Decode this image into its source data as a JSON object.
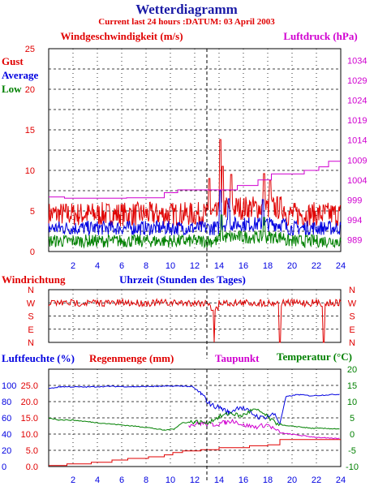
{
  "colors": {
    "title": "#1a1aa6",
    "red": "#e00000",
    "blue": "#0000e0",
    "green": "#008000",
    "magenta": "#d000d0",
    "grid": "#000000"
  },
  "header": {
    "title": "Wetterdiagramm",
    "subtitle": "Current last 24 hours :DATUM: 03 April 2003"
  },
  "chart_data": [
    {
      "type": "line",
      "title": "Windgeschwindigkeit (m/s)",
      "right_title": "Luftdruck (hPa)",
      "legend": [
        "Gust",
        "Average",
        "Low"
      ],
      "x": {
        "label": "Uhrzeit (Stunden des Tages)",
        "min": 0,
        "max": 24,
        "ticks": [
          "2",
          "4",
          "6",
          "8",
          "10",
          "12",
          "14",
          "16",
          "18",
          "20",
          "22",
          "24"
        ]
      },
      "y_left": {
        "min": 0,
        "max": 25,
        "ticks": [
          "0",
          "5",
          "10",
          "15",
          "20",
          "25"
        ]
      },
      "y_right": {
        "min": 986,
        "max": 1037,
        "ticks": [
          "989",
          "994",
          "999",
          "1004",
          "1009",
          "1014",
          "1019",
          "1024",
          "1029",
          "1034"
        ]
      },
      "series": [
        {
          "name": "Gust",
          "color": "red",
          "base": 4.6,
          "spikes": [
            [
              13.2,
              9.0
            ],
            [
              14.1,
              13.8
            ],
            [
              14.3,
              10.5
            ],
            [
              15.0,
              9.5
            ],
            [
              17.7,
              9.6
            ],
            [
              18.2,
              8.8
            ]
          ]
        },
        {
          "name": "Average",
          "color": "blue",
          "base": 2.9,
          "spikes": [
            [
              14.1,
              7.5
            ],
            [
              14.8,
              6.5
            ],
            [
              17.6,
              6.4
            ]
          ]
        },
        {
          "name": "Low",
          "color": "green",
          "base": 1.3,
          "spikes": [
            [
              14.2,
              4.5
            ],
            [
              17.7,
              4.2
            ]
          ]
        },
        {
          "name": "Luftdruck",
          "color": "magenta",
          "steps": [
            [
              0,
              999.7
            ],
            [
              1.3,
              999.4
            ],
            [
              6.4,
              999.5
            ],
            [
              9.5,
              1000.8
            ],
            [
              10.6,
              1001.5
            ],
            [
              15.5,
              1002.6
            ],
            [
              17.2,
              1004.0
            ],
            [
              18.3,
              1005.5
            ],
            [
              21.0,
              1006.4
            ],
            [
              22.2,
              1007.3
            ],
            [
              23.0,
              1008.7
            ],
            [
              24,
              1008.7
            ]
          ]
        }
      ]
    },
    {
      "type": "line",
      "title": "Windrichtung",
      "y_ticks": [
        "N",
        "W",
        "S",
        "E",
        "N"
      ],
      "series": [
        {
          "name": "Windrichtung",
          "color": "red",
          "base": "W",
          "drops": [
            [
              13.6,
              "N"
            ],
            [
              19.0,
              "N"
            ],
            [
              22.6,
              "N"
            ]
          ]
        }
      ]
    },
    {
      "type": "line",
      "titles": [
        "Luftfeuchte (%)",
        "Regenmenge (mm)",
        "Taupunkt",
        "Temperatur (°C)"
      ],
      "y_left_humidity": {
        "min": 0,
        "max": 120,
        "ticks": [
          "0",
          "20",
          "40",
          "60",
          "80",
          "100"
        ]
      },
      "y_left_rain": {
        "min": 0,
        "max": 30,
        "ticks": [
          "0.0",
          "5.0",
          "10.0",
          "15.0",
          "20.0",
          "25.0"
        ]
      },
      "y_right": {
        "min": -10,
        "max": 20,
        "ticks": [
          "-10",
          "-5",
          "0",
          "5",
          "10",
          "15",
          "20"
        ]
      },
      "x_ticks": [
        "2",
        "4",
        "6",
        "8",
        "10",
        "12",
        "14",
        "16",
        "18",
        "20",
        "22",
        "24"
      ],
      "series": [
        {
          "name": "Luftfeuchte",
          "color": "blue",
          "points": [
            [
              0,
              24.0
            ],
            [
              1,
              24.6
            ],
            [
              3,
              24.5
            ],
            [
              5,
              24.7
            ],
            [
              7,
              24.6
            ],
            [
              9,
              24.7
            ],
            [
              11,
              24.8
            ],
            [
              11.8,
              24.6
            ],
            [
              12.5,
              22.5
            ],
            [
              13.3,
              19.0
            ],
            [
              14.2,
              18.0
            ],
            [
              14.8,
              16.5
            ],
            [
              15.7,
              18.5
            ],
            [
              16.5,
              16.8
            ],
            [
              17.4,
              15.0
            ],
            [
              18.0,
              15.5
            ],
            [
              18.6,
              16.2
            ],
            [
              19.0,
              13.2
            ],
            [
              19.5,
              21.5
            ],
            [
              20.5,
              22.2
            ],
            [
              21.5,
              21.8
            ],
            [
              22.5,
              22.0
            ],
            [
              24,
              22.3
            ]
          ]
        },
        {
          "name": "Regenmenge",
          "color": "red",
          "steps": [
            [
              0,
              0.3
            ],
            [
              1.5,
              0.8
            ],
            [
              3.5,
              1.3
            ],
            [
              5.2,
              2.0
            ],
            [
              6.5,
              2.5
            ],
            [
              8.2,
              3.0
            ],
            [
              9.5,
              3.6
            ],
            [
              10.2,
              4.3
            ],
            [
              11.0,
              4.8
            ],
            [
              12.5,
              5.2
            ],
            [
              13.2,
              5.2
            ],
            [
              14.0,
              5.8
            ],
            [
              16.5,
              6.4
            ],
            [
              18.0,
              6.7
            ],
            [
              19.0,
              8.3
            ],
            [
              23.0,
              8.3
            ],
            [
              24,
              8.3
            ]
          ]
        },
        {
          "name": "Taupunkt",
          "color": "magenta",
          "points": [
            [
              11.5,
              2.7
            ],
            [
              12.5,
              3.3
            ],
            [
              13.5,
              2.9
            ],
            [
              14.5,
              3.6
            ],
            [
              15.2,
              4.1
            ],
            [
              16.0,
              2.8
            ],
            [
              17.0,
              2.2
            ],
            [
              18.0,
              2.9
            ],
            [
              19.0,
              0.4
            ],
            [
              20.0,
              -0.1
            ],
            [
              21.5,
              -0.8
            ],
            [
              23.0,
              -1.3
            ],
            [
              24,
              -1.4
            ]
          ]
        },
        {
          "name": "Temperatur",
          "color": "green",
          "points": [
            [
              0,
              5.0
            ],
            [
              0.8,
              4.4
            ],
            [
              2,
              4.3
            ],
            [
              4,
              3.5
            ],
            [
              6,
              2.8
            ],
            [
              8,
              2.1
            ],
            [
              9.5,
              1.2
            ],
            [
              10.3,
              1.6
            ],
            [
              11,
              3.5
            ],
            [
              12,
              3.8
            ],
            [
              13,
              3.5
            ],
            [
              14,
              5.3
            ],
            [
              15,
              6.5
            ],
            [
              15.8,
              5.5
            ],
            [
              16.8,
              7.5
            ],
            [
              17.5,
              6.7
            ],
            [
              18.5,
              3.7
            ],
            [
              19.5,
              2.5
            ],
            [
              20.5,
              2.3
            ],
            [
              21.5,
              1.8
            ],
            [
              23,
              1.7
            ],
            [
              24,
              1.6
            ]
          ]
        }
      ]
    }
  ]
}
